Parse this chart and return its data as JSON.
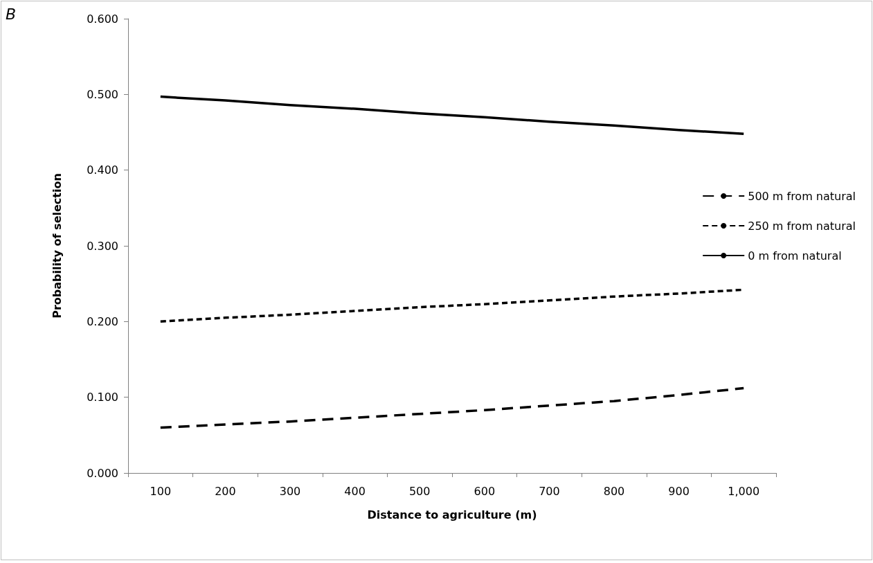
{
  "chart_data": {
    "type": "line",
    "annotations": [
      "B"
    ],
    "xlabel": "Distance to agriculture (m)",
    "ylabel": "Probability of selection",
    "categories": [
      "100",
      "200",
      "300",
      "400",
      "500",
      "600",
      "700",
      "800",
      "900",
      "1,000"
    ],
    "series": [
      {
        "name": "500 m from natural",
        "color": "#000000",
        "line_style": "dashed",
        "values": [
          0.06,
          0.064,
          0.068,
          0.073,
          0.078,
          0.083,
          0.089,
          0.095,
          0.103,
          0.112
        ]
      },
      {
        "name": "250 m from natural",
        "color": "#000000",
        "line_style": "dashed",
        "values": [
          0.2,
          0.205,
          0.209,
          0.214,
          0.219,
          0.223,
          0.228,
          0.233,
          0.237,
          0.242
        ]
      },
      {
        "name": "0 m from natural",
        "color": "#000000",
        "line_style": "solid",
        "values": [
          0.497,
          0.492,
          0.486,
          0.481,
          0.475,
          0.47,
          0.464,
          0.459,
          0.453,
          0.448
        ]
      }
    ],
    "ylim": [
      0,
      0.6
    ],
    "yticks": [
      {
        "value": 0,
        "label": "0.000"
      },
      {
        "value": 0.1,
        "label": "0.100"
      },
      {
        "value": 0.2,
        "label": "0.200"
      },
      {
        "value": 0.3,
        "label": "0.300"
      },
      {
        "value": 0.4,
        "label": "0.400"
      },
      {
        "value": 0.5,
        "label": "0.500"
      },
      {
        "value": 0.6,
        "label": "0.600"
      }
    ],
    "grid": false,
    "legend": "right",
    "marker": "none"
  }
}
